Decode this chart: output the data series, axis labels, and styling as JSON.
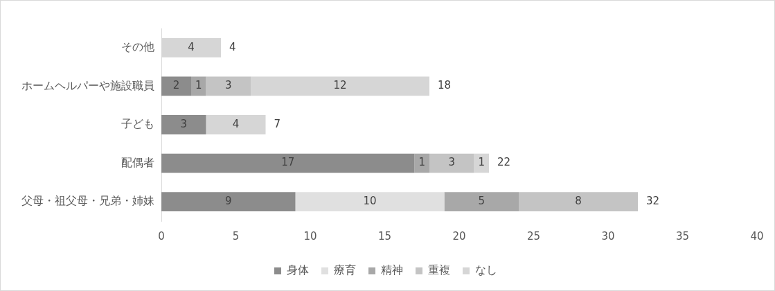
{
  "chart_data": {
    "type": "bar",
    "orientation": "horizontal",
    "stacked": true,
    "categories": [
      "その他",
      "ホームヘルパーや施設職員",
      "子ども",
      "配偶者",
      "父母・祖父母・兄弟・姉妹"
    ],
    "series": [
      {
        "name": "身体",
        "color": "#8c8c8c",
        "values": [
          null,
          2,
          3,
          17,
          9
        ]
      },
      {
        "name": "療育",
        "color": "#e0e0e0",
        "values": [
          null,
          null,
          null,
          null,
          10
        ]
      },
      {
        "name": "精神",
        "color": "#a8a8a8",
        "values": [
          null,
          1,
          null,
          1,
          5
        ]
      },
      {
        "name": "重複",
        "color": "#c4c4c4",
        "values": [
          null,
          3,
          null,
          3,
          8
        ]
      },
      {
        "name": "なし",
        "color": "#d6d6d6",
        "values": [
          4,
          12,
          4,
          1,
          null
        ]
      }
    ],
    "xlim": [
      0,
      40
    ],
    "xticks": [
      0,
      5,
      10,
      15,
      20,
      25,
      30,
      35,
      40
    ],
    "data_labels": true,
    "totals": [
      "4",
      "18",
      "7",
      "22",
      "32"
    ],
    "legend": "bottom",
    "grid": false
  }
}
